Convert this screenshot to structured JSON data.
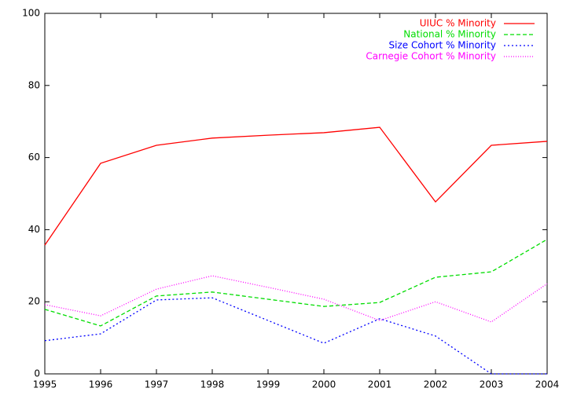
{
  "chart_data": {
    "type": "line",
    "x": [
      1995,
      1996,
      1997,
      1998,
      1999,
      2000,
      2001,
      2002,
      2003,
      2004
    ],
    "series": [
      {
        "name": "UIUC % Minority",
        "color": "#ff0000",
        "dash": "solid",
        "values": [
          35.7,
          58.4,
          63.4,
          65.4,
          66.2,
          66.9,
          68.4,
          47.7,
          63.4,
          64.5
        ]
      },
      {
        "name": "National % Minority",
        "color": "#00dd00",
        "dash": "dashed",
        "values": [
          17.9,
          13.3,
          21.6,
          22.7,
          20.7,
          18.7,
          19.8,
          26.8,
          28.3,
          37.3
        ]
      },
      {
        "name": "Size Cohort % Minority",
        "color": "#0000ff",
        "dash": "dotted",
        "values": [
          9.2,
          11.1,
          20.5,
          21.1,
          14.8,
          8.5,
          15.3,
          10.5,
          0,
          0
        ]
      },
      {
        "name": "Carnegie Cohort % Minority",
        "color": "#ff00ff",
        "dash": "fine-dotted",
        "values": [
          19.2,
          16.1,
          23.5,
          27.2,
          24.0,
          20.7,
          14.8,
          20.0,
          14.4,
          25.0
        ]
      }
    ],
    "xlim": [
      1995,
      2004
    ],
    "xticks": [
      1995,
      1996,
      1997,
      1998,
      1999,
      2000,
      2001,
      2002,
      2003,
      2004
    ],
    "ylim": [
      0,
      100
    ],
    "yticks": [
      0,
      20,
      40,
      60,
      80,
      100
    ],
    "grid": false,
    "legend": "top-right"
  }
}
